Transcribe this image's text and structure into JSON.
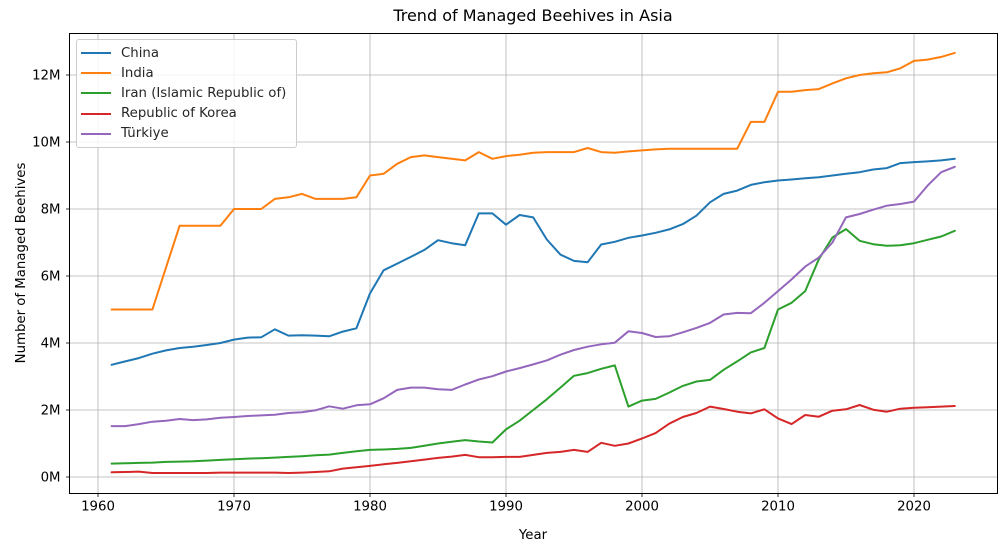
{
  "chart_data": {
    "type": "line",
    "title": "Trend of Managed Beehives in Asia",
    "xlabel": "Year",
    "ylabel": "Number of Managed Beehives",
    "x_ticks": [
      1960,
      1970,
      1980,
      1990,
      2000,
      2010,
      2020
    ],
    "y_ticks": [
      {
        "value": 0,
        "label": "0M"
      },
      {
        "value": 2,
        "label": "2M"
      },
      {
        "value": 4,
        "label": "4M"
      },
      {
        "value": 6,
        "label": "6M"
      },
      {
        "value": 8,
        "label": "8M"
      },
      {
        "value": 10,
        "label": "10M"
      },
      {
        "value": 12,
        "label": "12M"
      }
    ],
    "xlim": [
      1957.9,
      2026.1
    ],
    "ylim": [
      -0.48,
      13.25
    ],
    "grid": true,
    "legend_position": "upper left",
    "unit": "millions of beehives",
    "x": [
      1961,
      1962,
      1963,
      1964,
      1965,
      1966,
      1967,
      1968,
      1969,
      1970,
      1971,
      1972,
      1973,
      1974,
      1975,
      1976,
      1977,
      1978,
      1979,
      1980,
      1981,
      1982,
      1983,
      1984,
      1985,
      1986,
      1987,
      1988,
      1989,
      1990,
      1991,
      1992,
      1993,
      1994,
      1995,
      1996,
      1997,
      1998,
      1999,
      2000,
      2001,
      2002,
      2003,
      2004,
      2005,
      2006,
      2007,
      2008,
      2009,
      2010,
      2011,
      2012,
      2013,
      2014,
      2015,
      2016,
      2017,
      2018,
      2019,
      2020,
      2021,
      2022,
      2023
    ],
    "series": [
      {
        "name": "China",
        "color": "#1f77b4",
        "values": [
          3.35,
          3.45,
          3.55,
          3.68,
          3.78,
          3.85,
          3.89,
          3.94,
          4.0,
          4.1,
          4.16,
          4.17,
          4.41,
          4.22,
          4.23,
          4.22,
          4.2,
          4.34,
          4.44,
          5.48,
          6.17,
          6.37,
          6.57,
          6.78,
          7.07,
          6.98,
          6.92,
          7.87,
          7.87,
          7.53,
          7.82,
          7.75,
          7.09,
          6.64,
          6.45,
          6.41,
          6.94,
          7.02,
          7.14,
          7.21,
          7.29,
          7.39,
          7.55,
          7.8,
          8.2,
          8.45,
          8.55,
          8.72,
          8.8,
          8.85,
          8.88,
          8.92,
          8.95,
          9.0,
          9.05,
          9.1,
          9.18,
          9.22,
          9.37,
          9.4,
          9.42,
          9.45,
          9.5
        ]
      },
      {
        "name": "India",
        "color": "#ff7f0e",
        "values": [
          5.0,
          5.0,
          5.0,
          5.0,
          6.25,
          7.5,
          7.5,
          7.5,
          7.5,
          8.0,
          8.0,
          8.0,
          8.3,
          8.35,
          8.45,
          8.3,
          8.3,
          8.3,
          8.35,
          9.0,
          9.05,
          9.35,
          9.55,
          9.6,
          9.55,
          9.5,
          9.45,
          9.7,
          9.5,
          9.58,
          9.62,
          9.68,
          9.7,
          9.7,
          9.7,
          9.82,
          9.7,
          9.68,
          9.72,
          9.75,
          9.78,
          9.8,
          9.8,
          9.8,
          9.8,
          9.8,
          9.8,
          10.6,
          10.6,
          11.5,
          11.5,
          11.55,
          11.58,
          11.75,
          11.9,
          12.0,
          12.05,
          12.08,
          12.2,
          12.42,
          12.46,
          12.54,
          12.66
        ]
      },
      {
        "name": "Iran (Islamic Republic of)",
        "color": "#2ca02c",
        "values": [
          0.4,
          0.41,
          0.42,
          0.43,
          0.45,
          0.46,
          0.47,
          0.49,
          0.51,
          0.53,
          0.55,
          0.56,
          0.58,
          0.6,
          0.62,
          0.65,
          0.67,
          0.72,
          0.77,
          0.81,
          0.82,
          0.84,
          0.87,
          0.93,
          1.0,
          1.05,
          1.1,
          1.06,
          1.03,
          1.42,
          1.68,
          2.0,
          2.32,
          2.67,
          3.02,
          3.1,
          3.23,
          3.33,
          2.1,
          2.28,
          2.33,
          2.52,
          2.72,
          2.85,
          2.9,
          3.2,
          3.45,
          3.72,
          3.85,
          5.0,
          5.2,
          5.55,
          6.5,
          7.15,
          7.4,
          7.05,
          6.95,
          6.9,
          6.92,
          6.98,
          7.08,
          7.18,
          7.35
        ]
      },
      {
        "name": "Republic of Korea",
        "color": "#d62728",
        "values": [
          0.14,
          0.15,
          0.16,
          0.12,
          0.12,
          0.12,
          0.12,
          0.12,
          0.13,
          0.13,
          0.13,
          0.13,
          0.13,
          0.12,
          0.13,
          0.15,
          0.17,
          0.25,
          0.29,
          0.33,
          0.38,
          0.42,
          0.47,
          0.52,
          0.57,
          0.61,
          0.66,
          0.59,
          0.59,
          0.6,
          0.6,
          0.66,
          0.72,
          0.75,
          0.81,
          0.75,
          1.02,
          0.93,
          1.0,
          1.15,
          1.31,
          1.59,
          1.79,
          1.91,
          2.1,
          2.03,
          1.95,
          1.9,
          2.02,
          1.75,
          1.58,
          1.85,
          1.8,
          1.98,
          2.02,
          2.15,
          2.01,
          1.95,
          2.04,
          2.07,
          2.08,
          2.1,
          2.12
        ]
      },
      {
        "name": "Türkiye",
        "color": "#9467bd",
        "values": [
          1.52,
          1.52,
          1.58,
          1.65,
          1.68,
          1.73,
          1.7,
          1.72,
          1.77,
          1.79,
          1.82,
          1.84,
          1.86,
          1.91,
          1.93,
          1.99,
          2.11,
          2.04,
          2.14,
          2.17,
          2.35,
          2.6,
          2.67,
          2.67,
          2.62,
          2.6,
          2.76,
          2.91,
          3.01,
          3.15,
          3.25,
          3.36,
          3.48,
          3.65,
          3.79,
          3.89,
          3.96,
          4.01,
          4.35,
          4.3,
          4.18,
          4.2,
          4.32,
          4.45,
          4.6,
          4.85,
          4.9,
          4.89,
          5.2,
          5.55,
          5.9,
          6.28,
          6.55,
          7.0,
          7.75,
          7.85,
          7.98,
          8.1,
          8.15,
          8.22,
          8.7,
          9.1,
          9.26
        ]
      }
    ]
  }
}
